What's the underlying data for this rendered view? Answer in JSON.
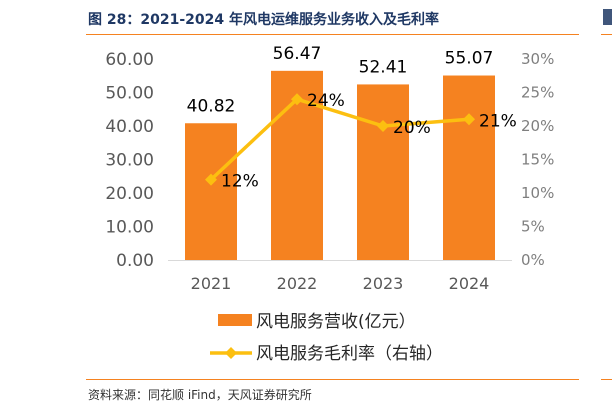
{
  "title": "图 28：2021-2024 年风电运维服务业务收入及毛利率",
  "source": "资料来源：同花顺 iFind，天风证券研究所",
  "colors": {
    "bar": "#f58220",
    "line": "#fcbf10",
    "rule": "#f58220",
    "title": "#1f3864"
  },
  "chart_data": {
    "type": "bar+line",
    "categories": [
      "2021",
      "2022",
      "2023",
      "2024"
    ],
    "series": [
      {
        "name": "风电服务营收(亿元）",
        "type": "bar",
        "axis": "left",
        "values": [
          40.82,
          56.47,
          52.41,
          55.07
        ],
        "labels": [
          "40.82",
          "56.47",
          "52.41",
          "55.07"
        ]
      },
      {
        "name": "风电服务毛利率（右轴）",
        "type": "line",
        "axis": "right",
        "values": [
          12,
          24,
          20,
          21
        ],
        "labels": [
          "12%",
          "24%",
          "20%",
          "21%"
        ]
      }
    ],
    "y_left": {
      "min": 0,
      "max": 60,
      "step": 10,
      "tick_labels": [
        "0.00",
        "10.00",
        "20.00",
        "30.00",
        "40.00",
        "50.00",
        "60.00"
      ]
    },
    "y_right": {
      "min": 0,
      "max": 30,
      "step": 5,
      "tick_labels": [
        "0%",
        "5%",
        "10%",
        "15%",
        "20%",
        "25%",
        "30%"
      ]
    },
    "grid": false,
    "legend": "bottom"
  }
}
